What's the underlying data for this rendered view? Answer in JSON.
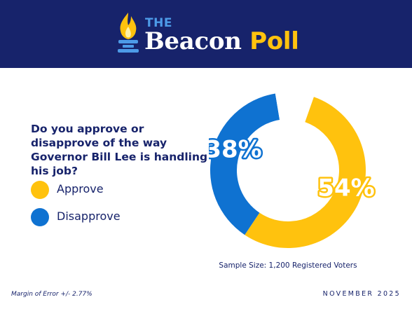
{
  "header": {
    "brand_the": "THE",
    "brand_name": "Beacon",
    "brand_poll": "Poll",
    "logo_icon": "torch-icon"
  },
  "question": "Do you approve or disapprove of the way Governor Bill Lee is handling his job?",
  "footer": {
    "sample_size": "Sample Size: 1,200 Registered Voters",
    "margin_of_error": "Margin of Error +/- 2.77%",
    "date": "NOVEMBER 2025"
  },
  "colors": {
    "header_bg": "#17236b",
    "approve": "#ffc20e",
    "disapprove": "#0f72d1",
    "text": "#17236b",
    "remainder": "#ffffff"
  },
  "chart_data": {
    "type": "pie",
    "style": "donut",
    "title": "Do you approve or disapprove of the way Governor Bill Lee is handling his job?",
    "legend_position": "left",
    "slices": [
      {
        "name": "Approve",
        "value": 54,
        "label": "54%",
        "color": "#ffc20e"
      },
      {
        "name": "Disapprove",
        "value": 38,
        "label": "38%",
        "color": "#0f72d1"
      },
      {
        "name": "",
        "value": 8,
        "label": "",
        "color": "#ffffff"
      }
    ]
  }
}
